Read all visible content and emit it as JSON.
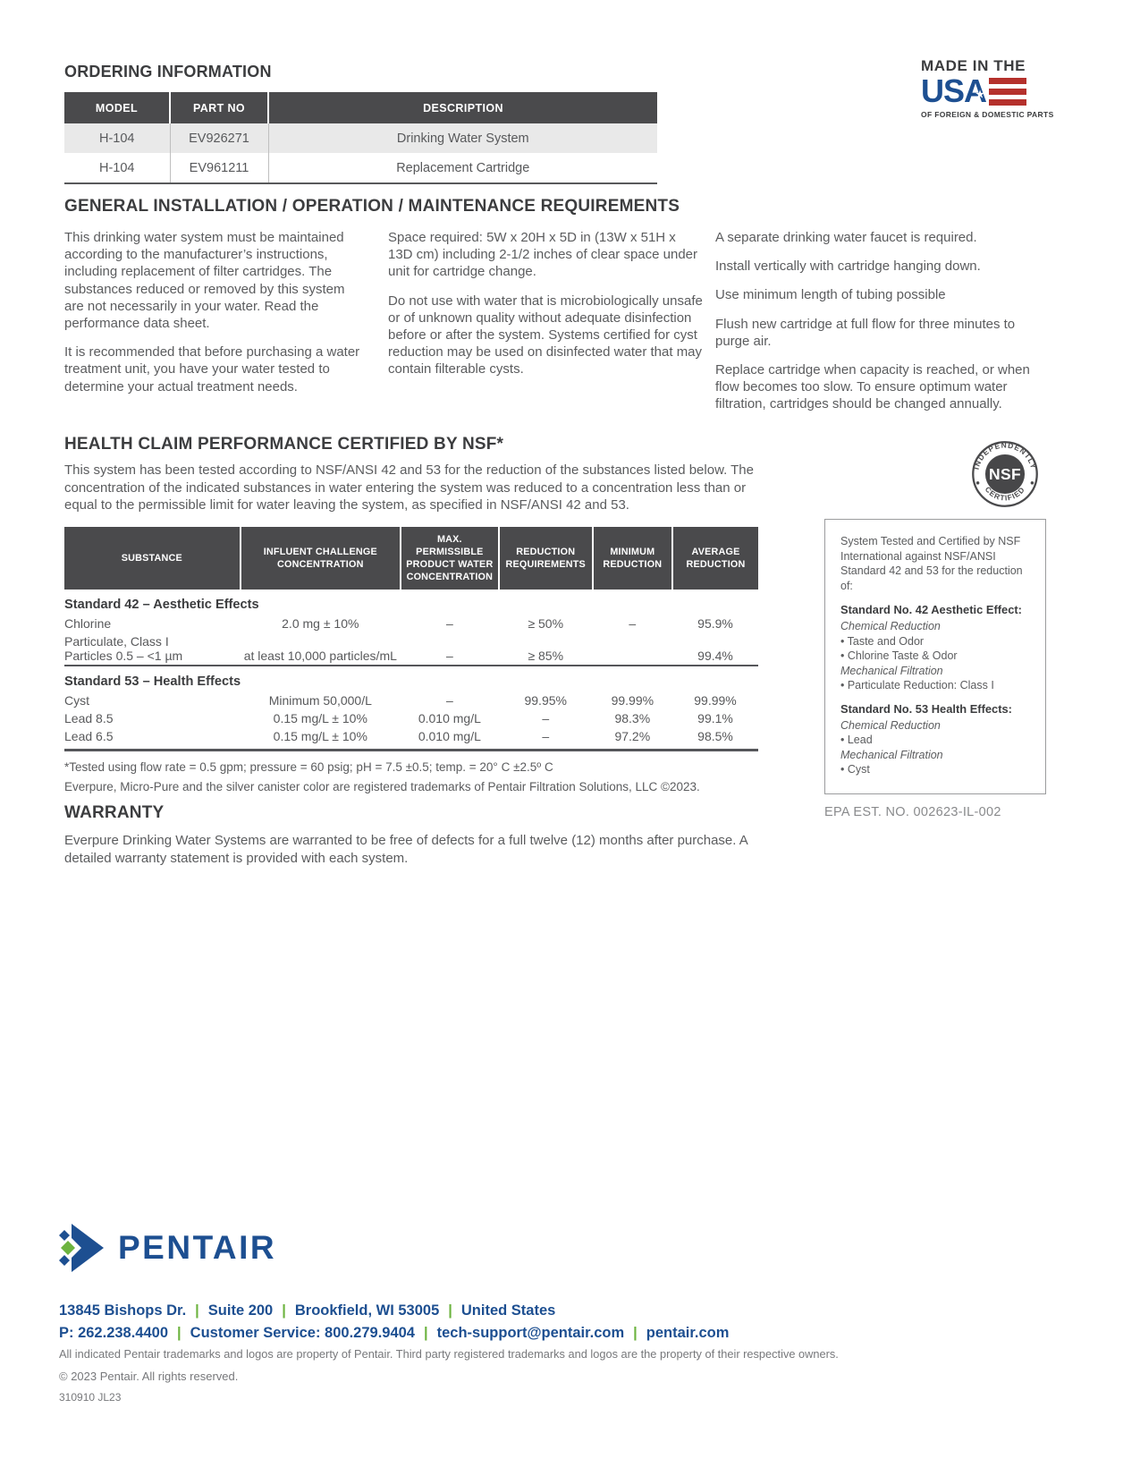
{
  "colors": {
    "pentair_blue": "#1d4f91",
    "pentair_green": "#6cb33f",
    "flag_red": "#b5312c",
    "header_bg": "#4a4a4c"
  },
  "made_in_usa": {
    "top": "MADE IN THE",
    "word": "USA",
    "bottom": "OF FOREIGN & DOMESTIC PARTS"
  },
  "ordering": {
    "title": "ORDERING INFORMATION",
    "columns": [
      "MODEL",
      "PART NO",
      "DESCRIPTION"
    ],
    "rows": [
      [
        "H-104",
        "EV926271",
        "Drinking Water System"
      ],
      [
        "H-104",
        "EV961211",
        "Replacement Cartridge"
      ]
    ]
  },
  "general": {
    "title": "GENERAL INSTALLATION / OPERATION / MAINTENANCE REQUIREMENTS",
    "col1": [
      "This drinking water system must be maintained according to the manufacturer’s instructions, including replacement of filter cartridges. The substances reduced or removed by this system are not necessarily in your water. Read the performance data sheet.",
      "It is recommended that before purchasing a water treatment unit, you have your water tested to determine your actual treatment needs."
    ],
    "col2": [
      "Space required: 5W x 20H x 5D in (13W x 51H x 13D cm) including 2-1/2 inches of clear space under unit for cartridge change.",
      "Do not use with water that is microbiologically unsafe or of unknown quality without adequate disinfection before or after the system. Systems certified for cyst reduction may be used on disinfected water that may contain filterable cysts."
    ],
    "col3": [
      "A separate drinking water faucet is required.",
      "Install vertically with cartridge hanging down.",
      "Use minimum length of tubing possible",
      "Flush new cartridge at full flow for three minutes to purge air.",
      "Replace cartridge when capacity is reached, or when flow becomes too slow. To ensure optimum water filtration, cartridges should be changed annually."
    ]
  },
  "health": {
    "title": "HEALTH CLAIM PERFORMANCE CERTIFIED BY NSF*",
    "intro": "This system has been tested according to NSF/ANSI 42 and 53 for the reduction of the substances listed below. The concentration of the indicated substances in water entering the system was reduced to a concentration less than or equal to the permissible limit for water leaving the system, as specified in NSF/ANSI 42 and 53.",
    "table": {
      "columns": [
        "SUBSTANCE",
        "INFLUENT CHALLENGE CONCENTRATION",
        "MAX. PERMISSIBLE PRODUCT WATER CONCENTRATION",
        "REDUCTION REQUIREMENTS",
        "MINIMUM REDUCTION",
        "AVERAGE REDUCTION"
      ],
      "groups": [
        {
          "name": "Standard 42 – Aesthetic Effects",
          "rows": [
            {
              "substance": "Chlorine",
              "substance2": "",
              "influent": "2.0 mg ± 10%",
              "max": "–",
              "req": "≥ 50%",
              "min": "–",
              "avg": "95.9%"
            },
            {
              "substance": "Particulate, Class I",
              "substance2": "Particles 0.5 – <1 µm",
              "influent": "at least 10,000 particles/mL",
              "max": "–",
              "req": "≥ 85%",
              "min": "",
              "avg": "99.4%"
            }
          ]
        },
        {
          "name": "Standard 53 – Health Effects",
          "rows": [
            {
              "substance": "Cyst",
              "substance2": "",
              "influent": "Minimum 50,000/L",
              "max": "–",
              "req": "99.95%",
              "min": "99.99%",
              "avg": "99.99%"
            },
            {
              "substance": "Lead 8.5",
              "substance2": "",
              "influent": "0.15 mg/L ± 10%",
              "max": "0.010 mg/L",
              "req": "–",
              "min": "98.3%",
              "avg": "99.1%"
            },
            {
              "substance": "Lead 6.5",
              "substance2": "",
              "influent": "0.15 mg/L ± 10%",
              "max": "0.010 mg/L",
              "req": "–",
              "min": "97.2%",
              "avg": "98.5%"
            }
          ]
        }
      ]
    },
    "footnote1": "*Tested using flow rate = 0.5 gpm; pressure = 60 psig; pH = 7.5 ±0.5; temp. = 20° C ±2.5º C",
    "footnote2": "Everpure, Micro-Pure and the silver canister color are registered trademarks of Pentair Filtration Solutions, LLC ©2023."
  },
  "nsf": {
    "badge_top": "INDEPENDENTLY",
    "badge_center": "NSF",
    "badge_bottom": "CERTIFIED",
    "box": {
      "intro": "System Tested and Certified by NSF International against NSF/ANSI Standard 42 and 53 for the reduction of:",
      "sections": [
        {
          "heading": "Standard No. 42 Aesthetic Effect:",
          "items": [
            {
              "style": "italic",
              "text": "Chemical Reduction"
            },
            {
              "style": "bullet",
              "text": "Taste and Odor"
            },
            {
              "style": "bullet",
              "text": "Chlorine Taste & Odor"
            },
            {
              "style": "italic",
              "text": "Mechanical Filtration"
            },
            {
              "style": "bullet",
              "text": "Particulate Reduction: Class I"
            }
          ]
        },
        {
          "heading": "Standard No. 53 Health Effects:",
          "items": [
            {
              "style": "italic",
              "text": "Chemical Reduction"
            },
            {
              "style": "bullet",
              "text": "Lead"
            },
            {
              "style": "italic",
              "text": "Mechanical Filtration"
            },
            {
              "style": "bullet",
              "text": "Cyst"
            }
          ]
        }
      ]
    },
    "epa": "EPA EST. NO. 002623-IL-002"
  },
  "warranty": {
    "title": "WARRANTY",
    "text": "Everpure Drinking Water Systems are warranted to be free of defects for a full twelve (12) months after purchase. A detailed warranty statement is provided with each system."
  },
  "footer": {
    "brand": "PENTAIR",
    "address": [
      "13845 Bishops Dr.",
      "Suite 200",
      "Brookfield, WI 53005",
      "United States"
    ],
    "contact": [
      "P: 262.238.4400",
      "Customer Service: 800.279.9404",
      "tech-support@pentair.com",
      "pentair.com"
    ],
    "trademark": "All indicated Pentair trademarks and logos are property of Pentair. Third party registered trademarks and logos are the property of their respective owners.",
    "copyright": "© 2023 Pentair.   All rights reserved.",
    "doc_code": "310910 JL23"
  }
}
